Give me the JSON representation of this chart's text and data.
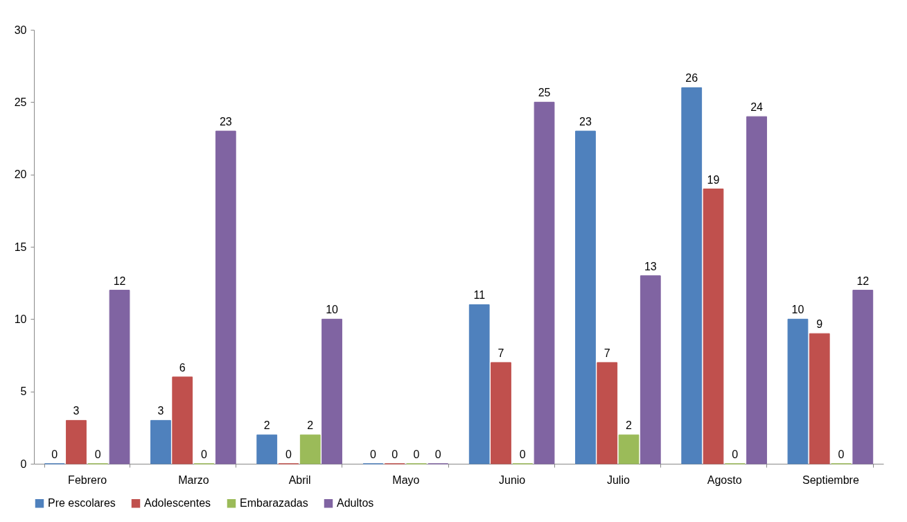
{
  "chart_data": {
    "type": "bar",
    "categories": [
      "Febrero",
      "Marzo",
      "Abril",
      "Mayo",
      "Junio",
      "Julio",
      "Agosto",
      "Septiembre"
    ],
    "series": [
      {
        "name": "Pre escolares",
        "color": "#4f81bd",
        "values": [
          0,
          3,
          2,
          0,
          11,
          23,
          26,
          10
        ]
      },
      {
        "name": "Adolescentes",
        "color": "#c0504d",
        "values": [
          3,
          6,
          0,
          0,
          7,
          7,
          19,
          9
        ]
      },
      {
        "name": "Embarazadas",
        "color": "#9bbb59",
        "values": [
          0,
          0,
          2,
          0,
          0,
          2,
          0,
          0
        ]
      },
      {
        "name": "Adultos",
        "color": "#8064a2",
        "values": [
          12,
          23,
          10,
          0,
          25,
          13,
          24,
          12
        ]
      }
    ],
    "ylim": [
      0,
      30
    ],
    "yticks": [
      0,
      5,
      10,
      15,
      20,
      25,
      30
    ],
    "grid": false,
    "legend": "bottom",
    "data_labels": true
  }
}
